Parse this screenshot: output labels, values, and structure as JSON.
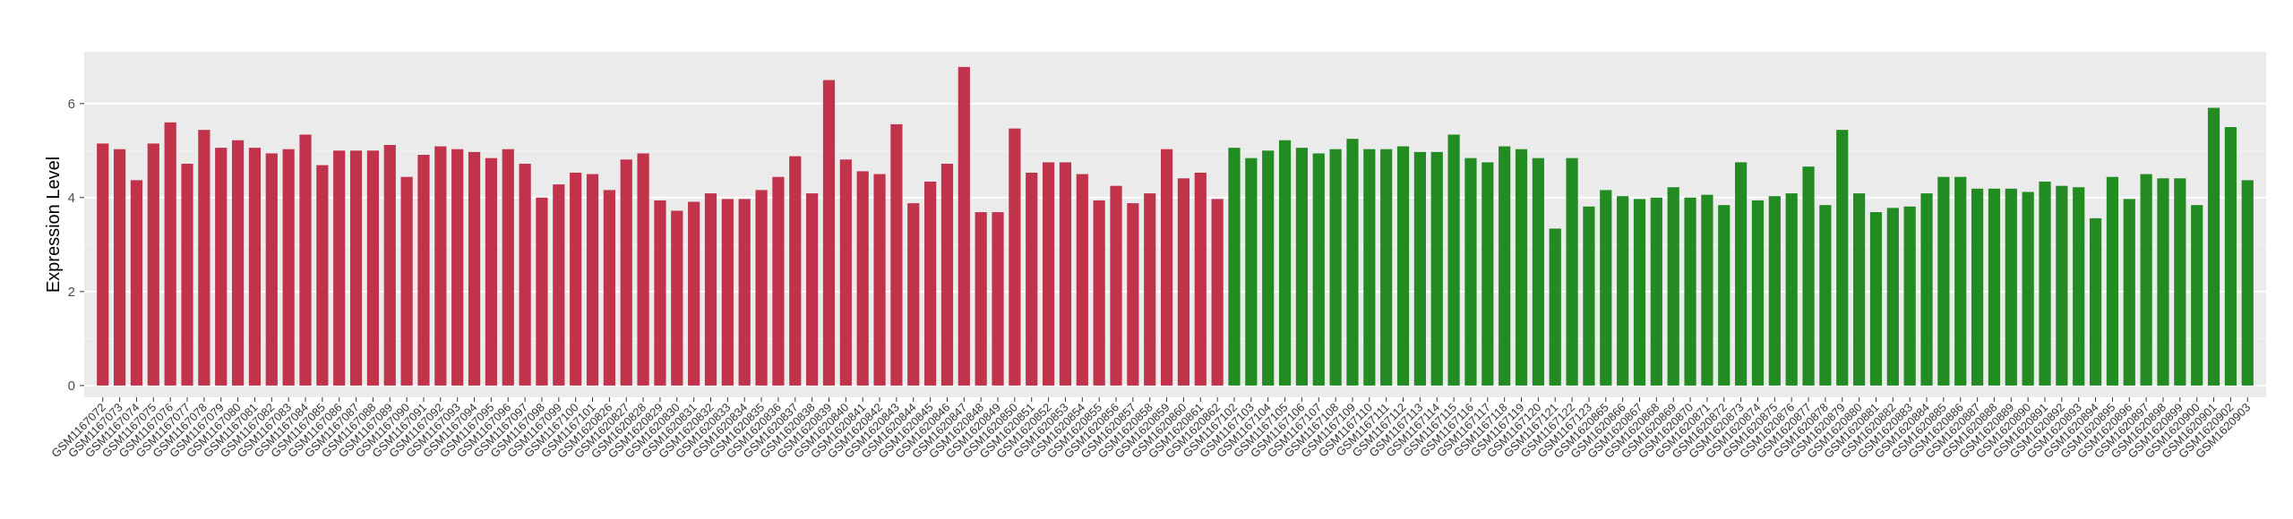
{
  "chart_data": {
    "type": "bar",
    "y_label": "Expression Level",
    "categories": [
      "GSM1167072",
      "GSM1167073",
      "GSM1167074",
      "GSM1167075",
      "GSM1167076",
      "GSM1167077",
      "GSM1167078",
      "GSM1167079",
      "GSM1167080",
      "GSM1167081",
      "GSM1167082",
      "GSM1167083",
      "GSM1167084",
      "GSM1167085",
      "GSM1167086",
      "GSM1167087",
      "GSM1167088",
      "GSM1167089",
      "GSM1167090",
      "GSM1167091",
      "GSM1167092",
      "GSM1167093",
      "GSM1167094",
      "GSM1167095",
      "GSM1167096",
      "GSM1167097",
      "GSM1167098",
      "GSM1167099",
      "GSM1167100",
      "GSM1167101",
      "GSM1620826",
      "GSM1620827",
      "GSM1620828",
      "GSM1620829",
      "GSM1620830",
      "GSM1620831",
      "GSM1620832",
      "GSM1620833",
      "GSM1620834",
      "GSM1620835",
      "GSM1620836",
      "GSM1620837",
      "GSM1620838",
      "GSM1620839",
      "GSM1620840",
      "GSM1620841",
      "GSM1620842",
      "GSM1620843",
      "GSM1620844",
      "GSM1620845",
      "GSM1620846",
      "GSM1620847",
      "GSM1620848",
      "GSM1620849",
      "GSM1620850",
      "GSM1620851",
      "GSM1620852",
      "GSM1620853",
      "GSM1620854",
      "GSM1620855",
      "GSM1620856",
      "GSM1620857",
      "GSM1620858",
      "GSM1620859",
      "GSM1620860",
      "GSM1620861",
      "GSM1620862",
      "GSM1167102",
      "GSM1167103",
      "GSM1167104",
      "GSM1167105",
      "GSM1167106",
      "GSM1167107",
      "GSM1167108",
      "GSM1167109",
      "GSM1167110",
      "GSM1167111",
      "GSM1167112",
      "GSM1167113",
      "GSM1167114",
      "GSM1167115",
      "GSM1167116",
      "GSM1167117",
      "GSM1167118",
      "GSM1167119",
      "GSM1167120",
      "GSM1167121",
      "GSM1167122",
      "GSM1167123",
      "GSM1620865",
      "GSM1620866",
      "GSM1620867",
      "GSM1620868",
      "GSM1620869",
      "GSM1620870",
      "GSM1620871",
      "GSM1620872",
      "GSM1620873",
      "GSM1620874",
      "GSM1620875",
      "GSM1620876",
      "GSM1620877",
      "GSM1620878",
      "GSM1620879",
      "GSM1620880",
      "GSM1620881",
      "GSM1620882",
      "GSM1620883",
      "GSM1620884",
      "GSM1620885",
      "GSM1620886",
      "GSM1620887",
      "GSM1620888",
      "GSM1620889",
      "GSM1620890",
      "GSM1620891",
      "GSM1620892",
      "GSM1620893",
      "GSM1620894",
      "GSM1620895",
      "GSM1620896",
      "GSM1620897",
      "GSM1620898",
      "GSM1620899",
      "GSM1620900",
      "GSM1620901",
      "GSM1620902",
      "GSM1620903"
    ],
    "values": [
      5.15,
      5.03,
      4.37,
      5.15,
      5.6,
      4.72,
      5.44,
      5.06,
      5.22,
      5.06,
      4.94,
      5.03,
      5.34,
      4.69,
      5.0,
      5.0,
      5.0,
      5.12,
      4.44,
      4.91,
      5.09,
      5.03,
      4.97,
      4.84,
      5.03,
      4.72,
      4.0,
      4.28,
      4.53,
      4.5,
      4.16,
      4.81,
      4.94,
      3.94,
      3.72,
      3.91,
      4.09,
      3.97,
      3.97,
      4.16,
      4.44,
      4.88,
      4.09,
      6.5,
      4.81,
      4.56,
      4.5,
      5.56,
      3.88,
      4.34,
      4.72,
      6.78,
      3.69,
      3.69,
      5.47,
      4.53,
      4.75,
      4.75,
      4.5,
      3.94,
      4.25,
      3.88,
      4.09,
      5.03,
      4.41,
      4.53,
      3.97,
      5.06,
      4.84,
      5.0,
      5.22,
      5.06,
      4.94,
      5.03,
      5.25,
      5.03,
      5.03,
      5.09,
      4.97,
      4.97,
      5.34,
      4.84,
      4.75,
      5.09,
      5.03,
      4.84,
      3.34,
      4.84,
      3.81,
      4.16,
      4.03,
      3.97,
      4.0,
      4.22,
      4.0,
      4.06,
      3.84,
      4.75,
      3.94,
      4.03,
      4.09,
      4.66,
      3.84,
      5.44,
      4.09,
      3.69,
      3.78,
      3.81,
      4.09,
      4.44,
      4.44,
      4.19,
      4.19,
      4.19,
      4.12,
      4.34,
      4.25,
      4.22,
      3.56,
      4.44,
      3.97,
      4.5,
      4.41,
      4.41,
      3.84,
      5.91,
      5.5,
      4.37
    ],
    "colors": [
      "#c0334a",
      "#c0334a",
      "#c0334a",
      "#c0334a",
      "#c0334a",
      "#c0334a",
      "#c0334a",
      "#c0334a",
      "#c0334a",
      "#c0334a",
      "#c0334a",
      "#c0334a",
      "#c0334a",
      "#c0334a",
      "#c0334a",
      "#c0334a",
      "#c0334a",
      "#c0334a",
      "#c0334a",
      "#c0334a",
      "#c0334a",
      "#c0334a",
      "#c0334a",
      "#c0334a",
      "#c0334a",
      "#c0334a",
      "#c0334a",
      "#c0334a",
      "#c0334a",
      "#c0334a",
      "#c0334a",
      "#c0334a",
      "#c0334a",
      "#c0334a",
      "#c0334a",
      "#c0334a",
      "#c0334a",
      "#c0334a",
      "#c0334a",
      "#c0334a",
      "#c0334a",
      "#c0334a",
      "#c0334a",
      "#c0334a",
      "#c0334a",
      "#c0334a",
      "#c0334a",
      "#c0334a",
      "#c0334a",
      "#c0334a",
      "#c0334a",
      "#c0334a",
      "#c0334a",
      "#c0334a",
      "#c0334a",
      "#c0334a",
      "#c0334a",
      "#c0334a",
      "#c0334a",
      "#c0334a",
      "#c0334a",
      "#c0334a",
      "#c0334a",
      "#c0334a",
      "#c0334a",
      "#c0334a",
      "#c0334a",
      "#228b22",
      "#228b22",
      "#228b22",
      "#228b22",
      "#228b22",
      "#228b22",
      "#228b22",
      "#228b22",
      "#228b22",
      "#228b22",
      "#228b22",
      "#228b22",
      "#228b22",
      "#228b22",
      "#228b22",
      "#228b22",
      "#228b22",
      "#228b22",
      "#228b22",
      "#228b22",
      "#228b22",
      "#228b22",
      "#228b22",
      "#228b22",
      "#228b22",
      "#228b22",
      "#228b22",
      "#228b22",
      "#228b22",
      "#228b22",
      "#228b22",
      "#228b22",
      "#228b22",
      "#228b22",
      "#228b22",
      "#228b22",
      "#228b22",
      "#228b22",
      "#228b22",
      "#228b22",
      "#228b22",
      "#228b22",
      "#228b22",
      "#228b22",
      "#228b22",
      "#228b22",
      "#228b22",
      "#228b22",
      "#228b22",
      "#228b22",
      "#228b22",
      "#228b22",
      "#228b22",
      "#228b22",
      "#228b22",
      "#228b22",
      "#228b22",
      "#228b22",
      "#228b22",
      "#228b22",
      "#228b22"
    ],
    "ylim": [
      -0.25,
      7.1
    ],
    "yticks": [
      0,
      2,
      4,
      6
    ],
    "grid": true,
    "panel_color": "#ebebeb"
  }
}
